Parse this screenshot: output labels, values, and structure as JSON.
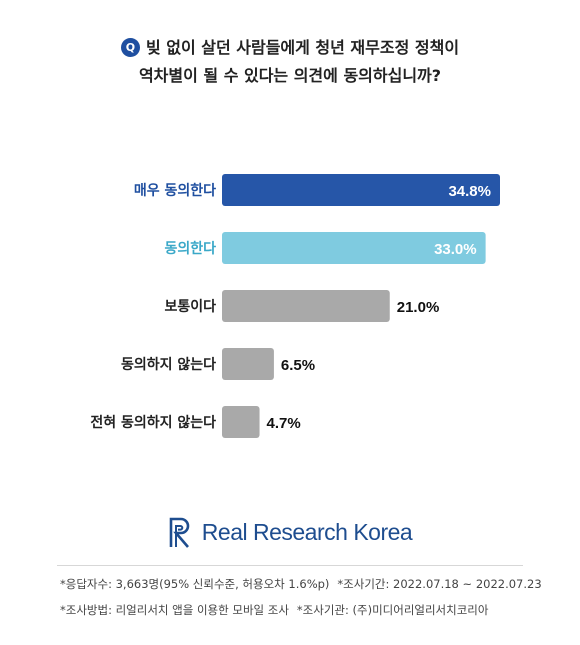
{
  "question": {
    "badge": "Q",
    "line1": "빚 없이 살던 사람들에게 청년 재무조정 정책이",
    "line2": "역차별이 될 수 있다는 의견에 동의하십니까?"
  },
  "chart_data": {
    "type": "bar",
    "orientation": "horizontal",
    "categories": [
      "매우 동의한다",
      "동의한다",
      "보통이다",
      "동의하지 않는다",
      "전혀 동의하지 않는다"
    ],
    "values": [
      34.8,
      33.0,
      21.0,
      6.5,
      4.7
    ],
    "value_labels": [
      "34.8%",
      "33.0%",
      "21.0%",
      "6.5%",
      "4.7%"
    ],
    "label_inside": [
      true,
      true,
      false,
      false,
      false
    ],
    "bar_colors": [
      "#2656a8",
      "#7fcbe0",
      "#a9a9a9",
      "#a9a9a9",
      "#a9a9a9"
    ],
    "label_colors": [
      "#1f4fa0",
      "#3aa8c8",
      "#222222",
      "#222222",
      "#222222"
    ],
    "xlim": [
      0,
      34.8
    ],
    "grid": false
  },
  "brand": {
    "name": "Real Research Korea",
    "color": "#1e4d8f"
  },
  "footnotes": {
    "respondents": "*응답자수: 3,663명(95% 신뢰수준, 허용오차 1.6%p)",
    "period": "*조사기간: 2022.07.18 ~ 2022.07.23",
    "method": "*조사방법: 리얼리서치 앱을 이용한 모바일 조사",
    "agency": "*조사기관: (주)미디어리얼리서치코리아"
  }
}
